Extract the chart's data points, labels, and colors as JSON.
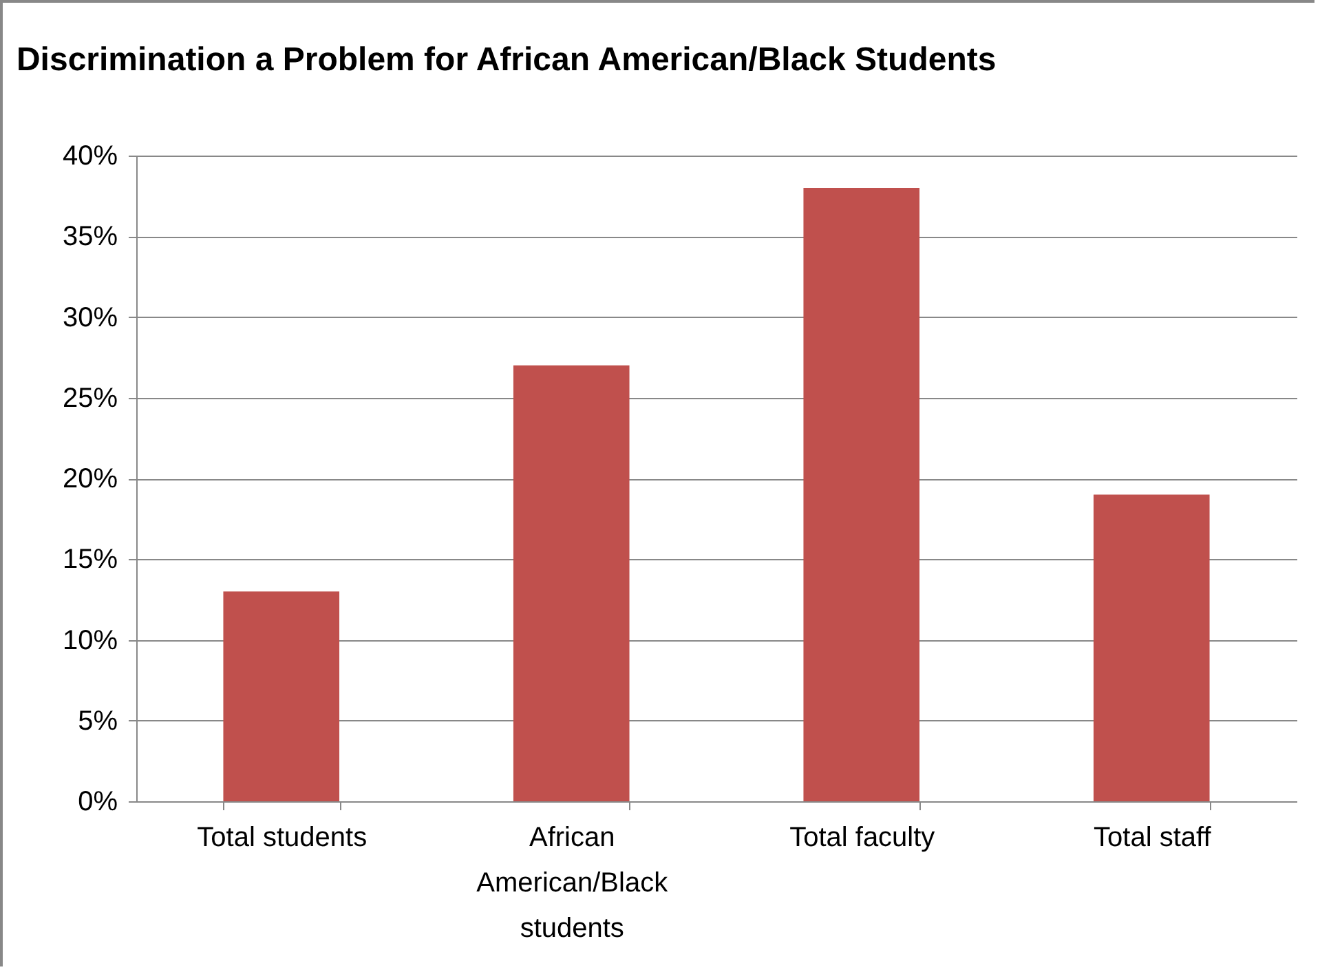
{
  "chart_data": {
    "type": "bar",
    "title": "Discrimination a Problem for African American/Black Students",
    "categories": [
      "Total students",
      "African American/Black students",
      "Total faculty",
      "Total staff"
    ],
    "values": [
      13,
      27,
      38,
      19
    ],
    "color": "#c0504d",
    "ylim": [
      0,
      40
    ],
    "yticks": [
      {
        "value": 0,
        "label": "0%"
      },
      {
        "value": 5,
        "label": "5%"
      },
      {
        "value": 10,
        "label": "10%"
      },
      {
        "value": 15,
        "label": "15%"
      },
      {
        "value": 20,
        "label": "20%"
      },
      {
        "value": 25,
        "label": "25%"
      },
      {
        "value": 30,
        "label": "30%"
      },
      {
        "value": 35,
        "label": "35%"
      },
      {
        "value": 40,
        "label": "40%"
      }
    ],
    "grid": "y"
  }
}
